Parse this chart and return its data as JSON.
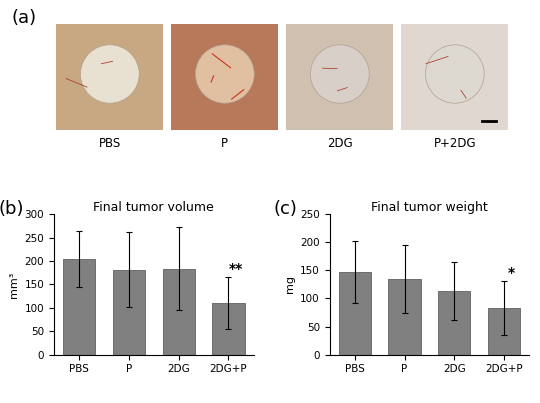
{
  "panel_b": {
    "title": "Final tumor volume",
    "ylabel": "mm³",
    "categories": [
      "PBS",
      "P",
      "2DG",
      "2DG+P"
    ],
    "values": [
      205,
      181,
      184,
      110
    ],
    "errors": [
      60,
      80,
      88,
      55
    ],
    "ylim": [
      0,
      300
    ],
    "yticks": [
      0,
      50,
      100,
      150,
      200,
      250,
      300
    ],
    "significance": [
      "",
      "",
      "",
      "**"
    ]
  },
  "panel_c": {
    "title": "Final tumor weight",
    "ylabel": "mg",
    "categories": [
      "PBS",
      "P",
      "2DG",
      "2DG+P"
    ],
    "values": [
      147,
      135,
      113,
      83
    ],
    "errors": [
      55,
      60,
      52,
      48
    ],
    "ylim": [
      0,
      250
    ],
    "yticks": [
      0,
      50,
      100,
      150,
      200,
      250
    ],
    "significance": [
      "",
      "",
      "",
      "*"
    ]
  },
  "bar_color": "#808080",
  "bar_edge_color": "#606060",
  "photo_labels": [
    "PBS",
    "P",
    "2DG",
    "P+2DG"
  ],
  "panel_label_a": "(a)",
  "panel_label_b": "(b)",
  "panel_label_c": "(c)",
  "background_color": "#ffffff",
  "title_fontsize": 9,
  "label_fontsize": 8,
  "tick_fontsize": 7.5,
  "sig_fontsize": 10,
  "photo_bg_colors": [
    "#c8a882",
    "#b8785a",
    "#d0c0b0",
    "#e0d8d0"
  ],
  "photo_tissue_colors": [
    "#e8e0d0",
    "#e0c0a0",
    "#d8d0c8",
    "#ddd8d0"
  ]
}
